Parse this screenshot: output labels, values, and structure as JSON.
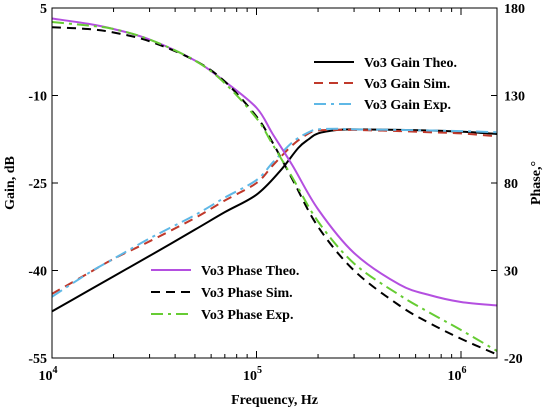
{
  "chart_data": {
    "type": "line",
    "xlabel": "Frequency, Hz",
    "ylabel_left": "Gain, dB",
    "ylabel_right": "Phase,°",
    "xscale": "log",
    "xlim": [
      10000,
      1500000
    ],
    "ylim_left": [
      -55,
      5
    ],
    "ylim_right": [
      -20,
      180
    ],
    "x_ticks": [
      {
        "value": 10000,
        "base": "10",
        "exp": "4"
      },
      {
        "value": 100000,
        "base": "10",
        "exp": "5"
      },
      {
        "value": 1000000,
        "base": "10",
        "exp": "6"
      }
    ],
    "y_ticks_left": [
      "5",
      "-10",
      "-25",
      "-40",
      "-55"
    ],
    "y_ticks_left_values": [
      5,
      -10,
      -25,
      -40,
      -55
    ],
    "y_ticks_right": [
      "180",
      "130",
      "80",
      "30",
      "-20"
    ],
    "y_ticks_right_values": [
      180,
      130,
      80,
      30,
      -20
    ],
    "grid": false,
    "series": [
      {
        "name": "Vo3 Gain Theo.",
        "axis": "left",
        "color": "#000000",
        "dash": "solid",
        "x": [
          10000,
          15000,
          20000,
          30000,
          50000,
          70000,
          100000,
          130000,
          160000,
          180000,
          200000,
          250000,
          300000,
          500000,
          700000,
          1000000,
          1500000
        ],
        "y": [
          -47,
          -43.5,
          -41,
          -37.5,
          -33,
          -30,
          -27,
          -23,
          -19,
          -17.5,
          -16.5,
          -15.9,
          -15.8,
          -15.9,
          -16.0,
          -16.2,
          -16.6
        ]
      },
      {
        "name": "Vo3 Gain Sim.",
        "axis": "left",
        "color": "#c0392b",
        "dash": "dash",
        "x": [
          10000,
          15000,
          20000,
          30000,
          50000,
          70000,
          100000,
          120000,
          150000,
          180000,
          200000,
          250000,
          300000,
          500000,
          700000,
          1000000,
          1500000
        ],
        "y": [
          -44,
          -40.5,
          -38,
          -35,
          -31,
          -28,
          -25,
          -22,
          -18.5,
          -16.5,
          -16.0,
          -15.9,
          -15.9,
          -16.1,
          -16.3,
          -16.5,
          -17.0
        ]
      },
      {
        "name": "Vo3 Gain Exp.",
        "axis": "left",
        "color": "#5fb8e6",
        "dash": "dashdot",
        "x": [
          10000,
          15000,
          20000,
          30000,
          50000,
          70000,
          100000,
          120000,
          150000,
          180000,
          200000,
          250000,
          300000,
          500000,
          700000,
          1000000,
          1500000
        ],
        "y": [
          -44.5,
          -40.5,
          -38,
          -34.5,
          -30.5,
          -27.5,
          -24.5,
          -21.5,
          -18,
          -16.3,
          -15.8,
          -15.7,
          -15.8,
          -15.9,
          -16.0,
          -16.1,
          -16.3
        ]
      },
      {
        "name": "Vo3 Phase Theo.",
        "axis": "right",
        "color": "#b44fe0",
        "dash": "solid",
        "x": [
          10000,
          15000,
          20000,
          30000,
          50000,
          70000,
          100000,
          120000,
          150000,
          200000,
          300000,
          500000,
          700000,
          1000000,
          1500000
        ],
        "y": [
          174,
          171,
          168,
          162,
          150,
          138,
          123,
          108,
          90,
          65,
          40,
          22,
          16,
          12,
          10
        ]
      },
      {
        "name": "Vo3 Phase Sim.",
        "axis": "right",
        "color": "#000000",
        "dash": "dash",
        "x": [
          10000,
          15000,
          20000,
          30000,
          50000,
          70000,
          100000,
          120000,
          150000,
          200000,
          300000,
          500000,
          700000,
          1000000,
          1500000
        ],
        "y": [
          169,
          168,
          166,
          161,
          150,
          138,
          118,
          103,
          82,
          55,
          30,
          10,
          0,
          -9,
          -18
        ]
      },
      {
        "name": "Vo3 Phase Exp.",
        "axis": "right",
        "color": "#66cc33",
        "dash": "dashdot",
        "x": [
          10000,
          15000,
          20000,
          30000,
          50000,
          70000,
          100000,
          120000,
          150000,
          200000,
          300000,
          500000,
          700000,
          1000000,
          1500000
        ],
        "y": [
          172,
          170,
          168,
          162,
          150,
          137,
          117,
          102,
          83,
          58,
          34,
          16,
          6,
          -4,
          -16
        ]
      }
    ],
    "legends": [
      {
        "placement": "top-right",
        "entries": [
          "Vo3 Gain Theo.",
          "Vo3 Gain Sim.",
          "Vo3 Gain Exp."
        ]
      },
      {
        "placement": "bottom-left",
        "entries": [
          "Vo3 Phase Theo.",
          "Vo3 Phase Sim.",
          "Vo3 Phase Exp."
        ]
      }
    ]
  }
}
